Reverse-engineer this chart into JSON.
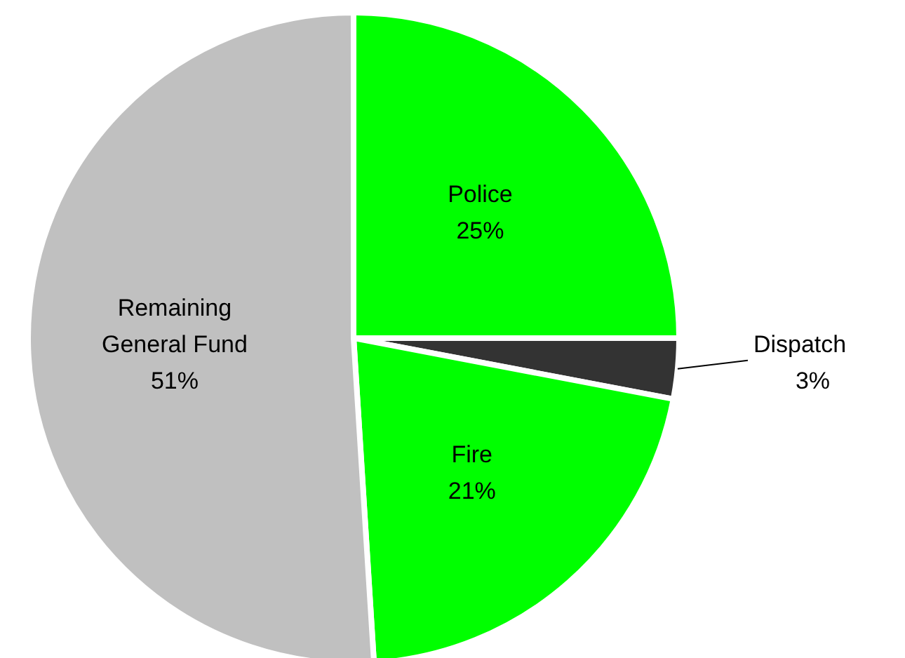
{
  "chart_data": {
    "type": "pie",
    "categories": [
      "Police",
      "Dispatch",
      "Fire",
      "Remaining General Fund"
    ],
    "values": [
      25,
      3,
      21,
      51
    ],
    "value_labels": [
      "25%",
      "3%",
      "21%",
      "51%"
    ],
    "colors": [
      "#00ff00",
      "#333333",
      "#00ff00",
      "#c0c0c0"
    ]
  }
}
